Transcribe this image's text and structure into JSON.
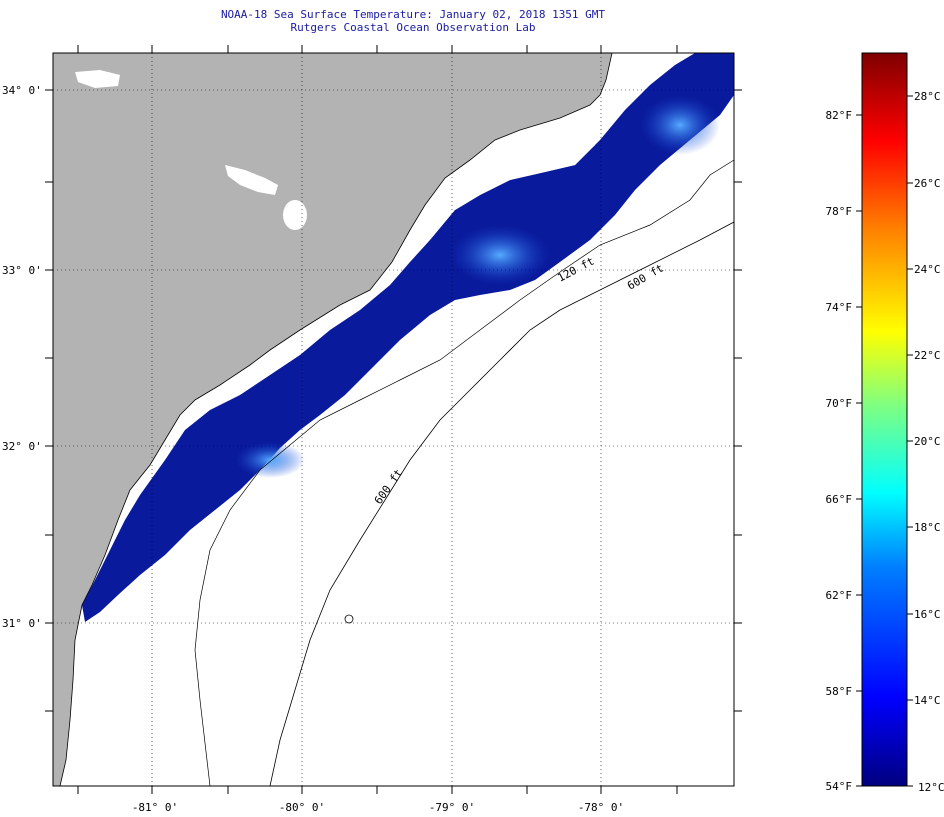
{
  "header": {
    "title": "NOAA-18 Sea Surface Temperature:  January 02, 2018 1351 GMT",
    "subtitle": "Rutgers Coastal Ocean Observation Lab"
  },
  "map": {
    "longitude_labels": [
      "-81° 0'",
      "-80° 0'",
      "-79° 0'",
      "-78° 0'"
    ],
    "latitude_labels": [
      "34° 0'",
      "33° 0'",
      "32° 0'",
      "31° 0'"
    ],
    "contours": [
      {
        "label": "120 ft"
      },
      {
        "label": "600 ft"
      },
      {
        "label": "600 ft"
      }
    ],
    "colors": {
      "land": "#b3b3b3",
      "cloud": "#ffffff",
      "water_cold": "#0a1a9c"
    }
  },
  "colorbar": {
    "fahrenheit_labels": [
      "82°F",
      "78°F",
      "74°F",
      "70°F",
      "66°F",
      "62°F",
      "58°F",
      "54°F"
    ],
    "celsius_labels": [
      "28°C",
      "26°C",
      "24°C",
      "22°C",
      "20°C",
      "18°C",
      "16°C",
      "14°C",
      "12°C"
    ],
    "stops": [
      "#00007f",
      "#0000ff",
      "#0080ff",
      "#00ffff",
      "#80ff80",
      "#ffff00",
      "#ff8000",
      "#ff0000",
      "#7f0000"
    ]
  }
}
